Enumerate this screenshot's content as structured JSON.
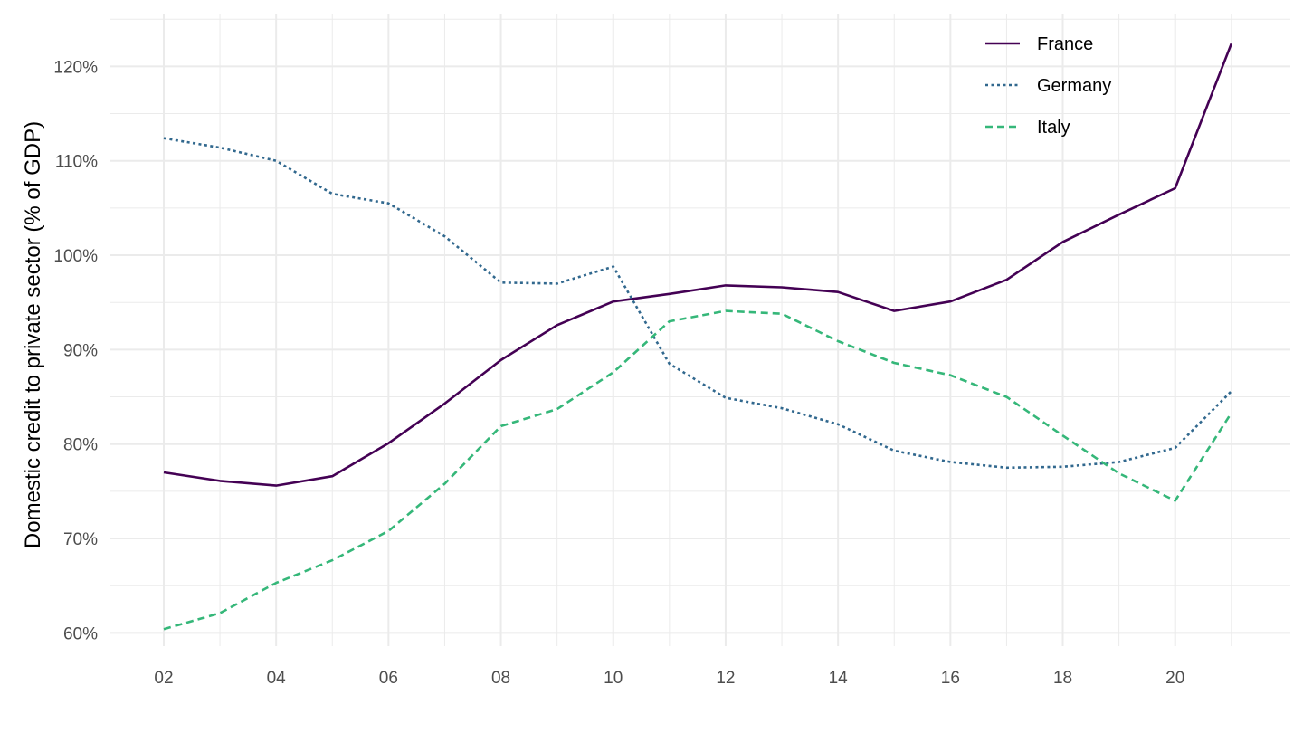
{
  "chart_data": {
    "type": "line",
    "title": "",
    "xlabel": "",
    "ylabel": "Domestic credit to private sector (% of GDP)",
    "x": [
      2,
      3,
      4,
      5,
      6,
      7,
      8,
      9,
      10,
      11,
      12,
      13,
      14,
      15,
      16,
      17,
      18,
      19,
      20,
      21
    ],
    "x_tick_values": [
      2,
      4,
      6,
      8,
      10,
      12,
      14,
      16,
      18,
      20
    ],
    "x_tick_labels": [
      "02",
      "04",
      "06",
      "08",
      "10",
      "12",
      "14",
      "16",
      "18",
      "20"
    ],
    "xlim": [
      1.05,
      22.05
    ],
    "y_tick_values": [
      60,
      70,
      80,
      90,
      100,
      110,
      120
    ],
    "y_tick_labels": [
      "60%",
      "70%",
      "80%",
      "90%",
      "100%",
      "110%",
      "120%"
    ],
    "ylim": [
      58.6,
      125.5
    ],
    "grid": true,
    "legend_position": "top-right",
    "series": [
      {
        "name": "France",
        "color": "#440154",
        "dash": "solid",
        "values": [
          77.0,
          76.1,
          75.6,
          76.6,
          80.1,
          84.3,
          88.9,
          92.6,
          95.1,
          95.9,
          96.8,
          96.6,
          96.1,
          94.1,
          95.1,
          97.4,
          101.4,
          104.3,
          107.1,
          122.4
        ]
      },
      {
        "name": "Germany",
        "color": "#31688e",
        "dash": "dotted",
        "values": [
          112.4,
          111.4,
          110.0,
          106.5,
          105.5,
          102.0,
          97.1,
          97.0,
          98.8,
          88.5,
          84.9,
          83.8,
          82.1,
          79.3,
          78.1,
          77.5,
          77.6,
          78.1,
          79.6,
          85.6
        ]
      },
      {
        "name": "Italy",
        "color": "#35b779",
        "dash": "dashed",
        "values": [
          60.4,
          62.1,
          65.3,
          67.7,
          70.8,
          75.8,
          81.9,
          83.7,
          87.6,
          93.0,
          94.1,
          93.8,
          90.9,
          88.6,
          87.3,
          85.0,
          80.9,
          76.9,
          74.0,
          83.3
        ]
      }
    ]
  }
}
